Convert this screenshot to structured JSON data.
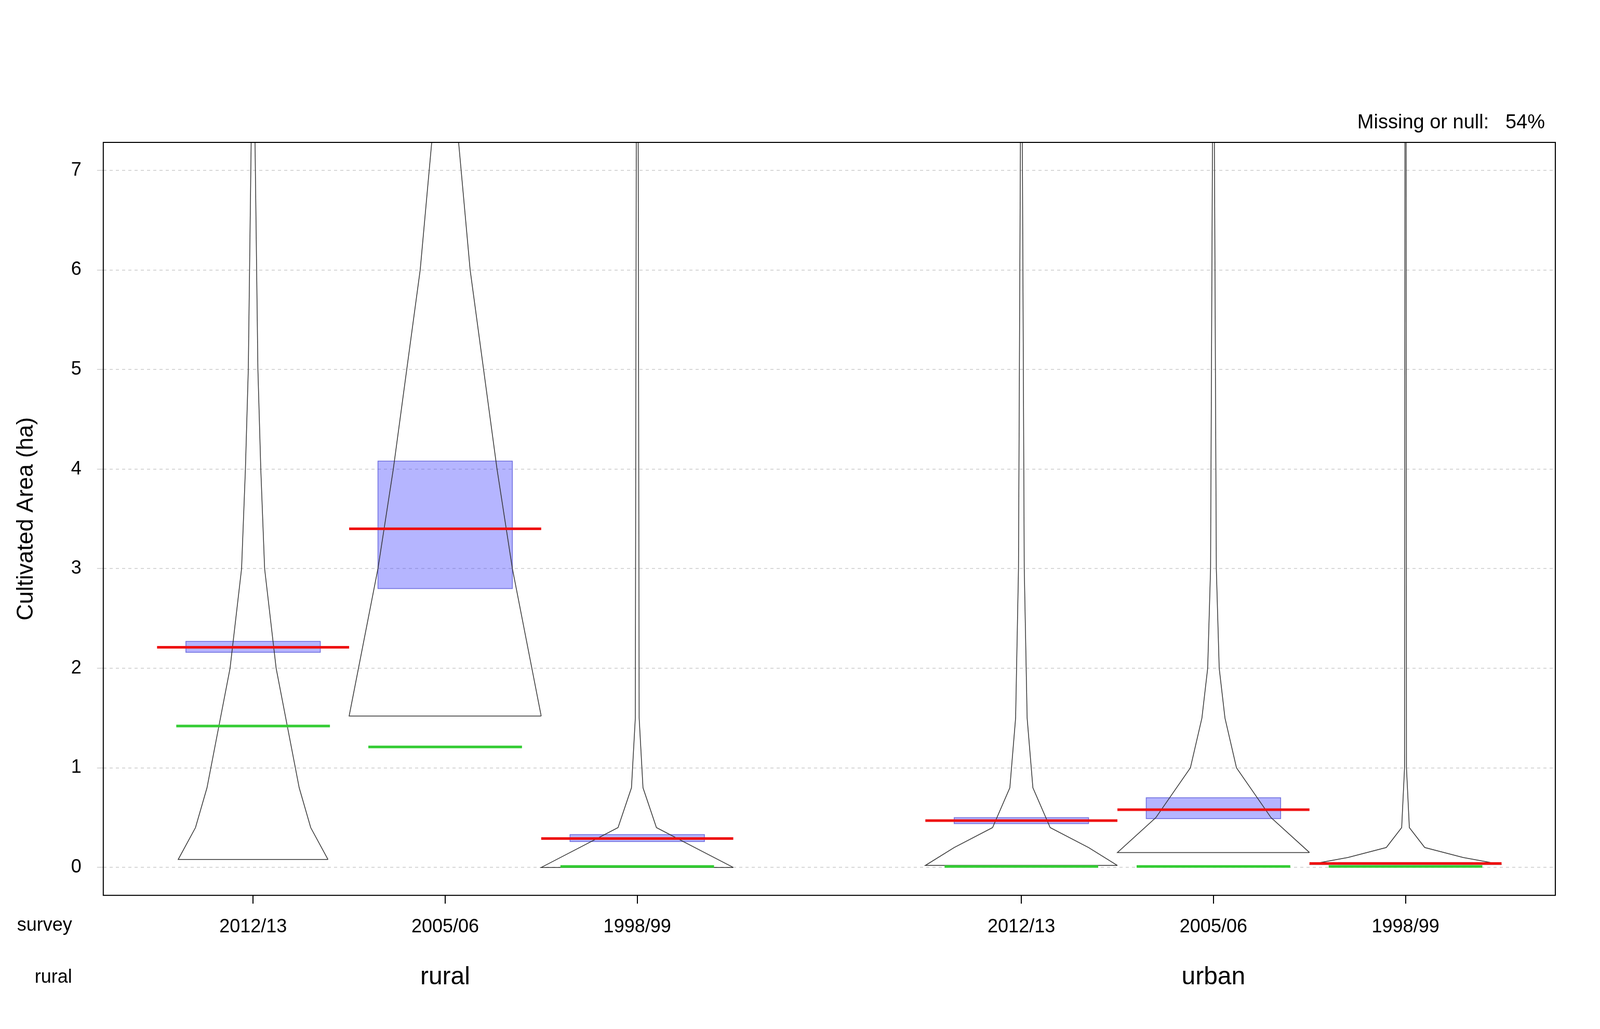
{
  "chart_data": {
    "type": "violin",
    "y_label": "Cultivated Area (ha)",
    "annotation": "Missing or null:   54%",
    "row_labels": [
      "survey",
      "rural"
    ],
    "categories": [
      "2012/13",
      "2005/06",
      "1998/99",
      "2012/13",
      "2005/06",
      "1998/99"
    ],
    "groups": [
      "rural",
      "rural",
      "rural",
      "urban",
      "urban",
      "urban"
    ],
    "ylim": [
      -0.28,
      7.28
    ],
    "yticks": [
      0,
      1,
      2,
      3,
      4,
      5,
      6,
      7
    ],
    "grid": true,
    "violins": [
      {
        "mean": 2.21,
        "median": 1.42,
        "ci": [
          2.16,
          2.27
        ],
        "density": {
          "y": [
            0.08,
            0.4,
            0.8,
            1.2,
            2,
            3,
            4,
            5,
            7.28
          ],
          "width": [
            0.39,
            0.3,
            0.24,
            0.2,
            0.12,
            0.06,
            0.04,
            0.025,
            0.01
          ]
        }
      },
      {
        "mean": 3.4,
        "median": 1.21,
        "ci": [
          2.8,
          4.08
        ],
        "density": {
          "y": [
            1.52,
            3,
            4,
            5,
            6,
            7.28
          ],
          "width": [
            0.5,
            0.35,
            0.27,
            0.2,
            0.13,
            0.07
          ]
        }
      },
      {
        "mean": 0.29,
        "median": 0.01,
        "ci": [
          0.26,
          0.33
        ],
        "density": {
          "y": [
            0,
            0.2,
            0.4,
            0.8,
            1.5,
            7.28
          ],
          "width": [
            0.5,
            0.3,
            0.1,
            0.03,
            0.01,
            0.005
          ]
        }
      },
      {
        "mean": 0.47,
        "median": 0.01,
        "ci": [
          0.44,
          0.5
        ],
        "density": {
          "y": [
            0.02,
            0.2,
            0.4,
            0.8,
            1.5,
            3,
            7.28
          ],
          "width": [
            0.5,
            0.35,
            0.15,
            0.06,
            0.03,
            0.015,
            0.005
          ]
        }
      },
      {
        "mean": 0.58,
        "median": 0.01,
        "ci": [
          0.49,
          0.7
        ],
        "density": {
          "y": [
            0.15,
            0.5,
            1,
            1.5,
            2,
            3,
            7.28
          ],
          "width": [
            0.5,
            0.3,
            0.12,
            0.06,
            0.03,
            0.015,
            0.005
          ]
        }
      },
      {
        "mean": 0.04,
        "median": 0.01,
        "ci": [
          0.03,
          0.05
        ],
        "density": {
          "y": [
            0.03,
            0.1,
            0.2,
            0.4,
            1,
            7.28
          ],
          "width": [
            0.5,
            0.3,
            0.1,
            0.02,
            0.005,
            0.003
          ]
        }
      }
    ]
  }
}
